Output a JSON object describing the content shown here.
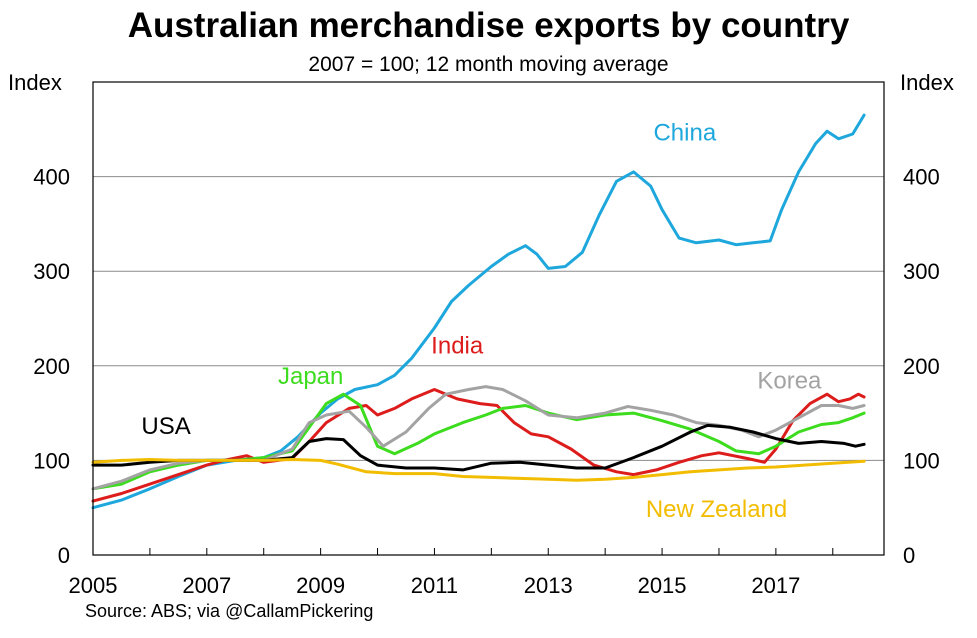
{
  "title": "Australian merchandise exports by country",
  "subtitle": "2007 = 100; 12 month moving average",
  "y_unit_left": "Index",
  "y_unit_right": "Index",
  "source": "Source: ABS; via @CallamPickering",
  "chart_data": {
    "type": "line",
    "title": "Australian merchandise exports by country",
    "subtitle": "2007 = 100; 12 month moving average",
    "xlabel": "",
    "ylabel": "Index",
    "xlim": [
      2005,
      2018.9
    ],
    "ylim": [
      0,
      500
    ],
    "yticks": [
      0,
      100,
      200,
      300,
      400
    ],
    "xticks": [
      2005,
      2007,
      2009,
      2011,
      2013,
      2015,
      2017
    ],
    "grid": true,
    "series": [
      {
        "name": "China",
        "color": "#1ea7dc",
        "label_at": [
          2015.4,
          438
        ],
        "label_anchor": "middle",
        "points": [
          [
            2005,
            50
          ],
          [
            2005.5,
            58
          ],
          [
            2006,
            70
          ],
          [
            2006.5,
            83
          ],
          [
            2007,
            95
          ],
          [
            2007.5,
            100
          ],
          [
            2008,
            103
          ],
          [
            2008.3,
            110
          ],
          [
            2008.6,
            125
          ],
          [
            2009,
            150
          ],
          [
            2009.3,
            165
          ],
          [
            2009.6,
            175
          ],
          [
            2010,
            180
          ],
          [
            2010.3,
            190
          ],
          [
            2010.6,
            208
          ],
          [
            2011,
            240
          ],
          [
            2011.3,
            268
          ],
          [
            2011.6,
            285
          ],
          [
            2012,
            305
          ],
          [
            2012.3,
            318
          ],
          [
            2012.6,
            327
          ],
          [
            2012.8,
            318
          ],
          [
            2013,
            303
          ],
          [
            2013.3,
            305
          ],
          [
            2013.6,
            320
          ],
          [
            2013.9,
            360
          ],
          [
            2014.2,
            395
          ],
          [
            2014.5,
            405
          ],
          [
            2014.8,
            390
          ],
          [
            2015,
            365
          ],
          [
            2015.3,
            335
          ],
          [
            2015.6,
            330
          ],
          [
            2016,
            333
          ],
          [
            2016.3,
            328
          ],
          [
            2016.6,
            330
          ],
          [
            2016.9,
            332
          ],
          [
            2017.1,
            365
          ],
          [
            2017.4,
            405
          ],
          [
            2017.7,
            435
          ],
          [
            2017.9,
            448
          ],
          [
            2018.1,
            440
          ],
          [
            2018.35,
            445
          ],
          [
            2018.55,
            465
          ]
        ]
      },
      {
        "name": "India",
        "color": "#dd1c1c",
        "label_at": [
          2011.4,
          213
        ],
        "label_anchor": "middle",
        "points": [
          [
            2005,
            57
          ],
          [
            2005.5,
            65
          ],
          [
            2006,
            75
          ],
          [
            2006.5,
            85
          ],
          [
            2007,
            95
          ],
          [
            2007.3,
            100
          ],
          [
            2007.7,
            105
          ],
          [
            2008,
            98
          ],
          [
            2008.5,
            102
          ],
          [
            2008.8,
            120
          ],
          [
            2009.1,
            140
          ],
          [
            2009.5,
            155
          ],
          [
            2009.8,
            158
          ],
          [
            2010,
            148
          ],
          [
            2010.3,
            155
          ],
          [
            2010.6,
            165
          ],
          [
            2011,
            175
          ],
          [
            2011.4,
            165
          ],
          [
            2011.8,
            160
          ],
          [
            2012.1,
            158
          ],
          [
            2012.4,
            140
          ],
          [
            2012.7,
            128
          ],
          [
            2013,
            125
          ],
          [
            2013.4,
            112
          ],
          [
            2013.8,
            95
          ],
          [
            2014.2,
            88
          ],
          [
            2014.5,
            85
          ],
          [
            2014.9,
            90
          ],
          [
            2015.3,
            98
          ],
          [
            2015.7,
            105
          ],
          [
            2016,
            108
          ],
          [
            2016.5,
            102
          ],
          [
            2016.8,
            98
          ],
          [
            2017,
            112
          ],
          [
            2017.3,
            142
          ],
          [
            2017.6,
            160
          ],
          [
            2017.9,
            170
          ],
          [
            2018.1,
            162
          ],
          [
            2018.3,
            165
          ],
          [
            2018.45,
            170
          ],
          [
            2018.55,
            167
          ]
        ]
      },
      {
        "name": "Japan",
        "color": "#3ddc1e",
        "label_at": [
          2009.4,
          181
        ],
        "label_anchor": "end",
        "points": [
          [
            2005,
            70
          ],
          [
            2005.5,
            75
          ],
          [
            2006,
            88
          ],
          [
            2006.5,
            95
          ],
          [
            2007,
            100
          ],
          [
            2007.5,
            100
          ],
          [
            2008,
            103
          ],
          [
            2008.5,
            110
          ],
          [
            2008.8,
            135
          ],
          [
            2009.1,
            160
          ],
          [
            2009.4,
            170
          ],
          [
            2009.7,
            158
          ],
          [
            2010,
            115
          ],
          [
            2010.3,
            107
          ],
          [
            2010.7,
            118
          ],
          [
            2011,
            128
          ],
          [
            2011.5,
            140
          ],
          [
            2011.9,
            148
          ],
          [
            2012.2,
            155
          ],
          [
            2012.6,
            158
          ],
          [
            2013,
            150
          ],
          [
            2013.5,
            143
          ],
          [
            2014,
            148
          ],
          [
            2014.5,
            150
          ],
          [
            2015,
            142
          ],
          [
            2015.5,
            133
          ],
          [
            2016,
            120
          ],
          [
            2016.3,
            110
          ],
          [
            2016.7,
            107
          ],
          [
            2017,
            115
          ],
          [
            2017.4,
            130
          ],
          [
            2017.8,
            138
          ],
          [
            2018.1,
            140
          ],
          [
            2018.35,
            145
          ],
          [
            2018.55,
            150
          ]
        ]
      },
      {
        "name": "Korea",
        "color": "#a3a3a3",
        "label_at": [
          2017.8,
          176
        ],
        "label_anchor": "end",
        "points": [
          [
            2005,
            70
          ],
          [
            2005.5,
            78
          ],
          [
            2006,
            90
          ],
          [
            2006.5,
            97
          ],
          [
            2007,
            100
          ],
          [
            2007.5,
            100
          ],
          [
            2008,
            100
          ],
          [
            2008.5,
            112
          ],
          [
            2008.8,
            140
          ],
          [
            2009.1,
            148
          ],
          [
            2009.5,
            152
          ],
          [
            2009.8,
            135
          ],
          [
            2010.1,
            115
          ],
          [
            2010.5,
            130
          ],
          [
            2010.9,
            155
          ],
          [
            2011.2,
            170
          ],
          [
            2011.6,
            175
          ],
          [
            2011.9,
            178
          ],
          [
            2012.2,
            175
          ],
          [
            2012.6,
            163
          ],
          [
            2013,
            148
          ],
          [
            2013.5,
            145
          ],
          [
            2014,
            150
          ],
          [
            2014.4,
            157
          ],
          [
            2014.8,
            153
          ],
          [
            2015.2,
            148
          ],
          [
            2015.6,
            140
          ],
          [
            2016,
            137
          ],
          [
            2016.4,
            132
          ],
          [
            2016.7,
            125
          ],
          [
            2017,
            132
          ],
          [
            2017.4,
            145
          ],
          [
            2017.8,
            158
          ],
          [
            2018.1,
            158
          ],
          [
            2018.35,
            155
          ],
          [
            2018.55,
            158
          ]
        ]
      },
      {
        "name": "USA",
        "color": "#000000",
        "label_at": [
          2005.85,
          128
        ],
        "label_anchor": "start",
        "points": [
          [
            2005,
            95
          ],
          [
            2005.5,
            95
          ],
          [
            2006,
            98
          ],
          [
            2006.5,
            100
          ],
          [
            2007,
            100
          ],
          [
            2007.5,
            100
          ],
          [
            2008,
            100
          ],
          [
            2008.5,
            103
          ],
          [
            2008.8,
            120
          ],
          [
            2009.1,
            123
          ],
          [
            2009.4,
            122
          ],
          [
            2009.7,
            105
          ],
          [
            2010,
            95
          ],
          [
            2010.5,
            92
          ],
          [
            2011,
            92
          ],
          [
            2011.5,
            90
          ],
          [
            2012,
            97
          ],
          [
            2012.5,
            98
          ],
          [
            2013,
            95
          ],
          [
            2013.5,
            92
          ],
          [
            2014,
            92
          ],
          [
            2014.5,
            103
          ],
          [
            2015,
            115
          ],
          [
            2015.5,
            130
          ],
          [
            2015.8,
            137
          ],
          [
            2016.2,
            135
          ],
          [
            2016.6,
            130
          ],
          [
            2017,
            123
          ],
          [
            2017.4,
            118
          ],
          [
            2017.8,
            120
          ],
          [
            2018.2,
            118
          ],
          [
            2018.4,
            115
          ],
          [
            2018.55,
            117
          ]
        ]
      },
      {
        "name": "New Zealand",
        "color": "#f2bd00",
        "label_at": [
          2017.2,
          40
        ],
        "label_anchor": "end",
        "points": [
          [
            2005,
            98
          ],
          [
            2005.5,
            100
          ],
          [
            2006,
            101
          ],
          [
            2006.5,
            100
          ],
          [
            2007,
            100
          ],
          [
            2007.5,
            100
          ],
          [
            2008,
            100
          ],
          [
            2008.5,
            101
          ],
          [
            2009,
            100
          ],
          [
            2009.3,
            96
          ],
          [
            2009.8,
            88
          ],
          [
            2010.3,
            86
          ],
          [
            2011,
            86
          ],
          [
            2011.5,
            83
          ],
          [
            2012,
            82
          ],
          [
            2013,
            80
          ],
          [
            2013.5,
            79
          ],
          [
            2014,
            80
          ],
          [
            2014.5,
            82
          ],
          [
            2015,
            85
          ],
          [
            2015.5,
            88
          ],
          [
            2016,
            90
          ],
          [
            2016.5,
            92
          ],
          [
            2017,
            93
          ],
          [
            2017.5,
            95
          ],
          [
            2018,
            97
          ],
          [
            2018.55,
            99
          ]
        ]
      }
    ]
  }
}
